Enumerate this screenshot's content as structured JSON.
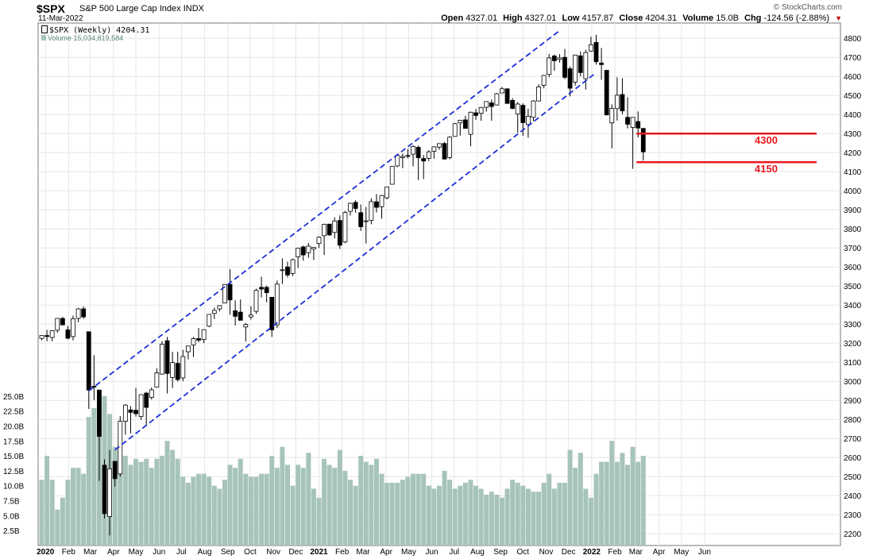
{
  "header": {
    "symbol": "$SPX",
    "name": "S&P 500 Large Cap Index",
    "exchange": "INDX",
    "date": "11-Mar-2022",
    "brand": "© StockCharts.com",
    "open_label": "Open",
    "open": "4327.01",
    "high_label": "High",
    "high": "4327.01",
    "low_label": "Low",
    "low": "4157.87",
    "close_label": "Close",
    "close": "4204.31",
    "volume_label": "Volume",
    "volume": "15.0B",
    "chg_label": "Chg",
    "chg": "-124.56 (-2.88%)"
  },
  "legend": {
    "price": "$SPX (Weekly) 4204.31",
    "volume": "Volume 15,034,819,584"
  },
  "colors": {
    "up_candle": "#ffffff",
    "down_candle": "#000000",
    "volume_bar": "#a7c4b8",
    "channel": "#1c2fd6",
    "level_line": "#e8191f",
    "grid": "#e6e6e6"
  },
  "chart_data": {
    "type": "candlestick",
    "frequency": "weekly",
    "ylim": [
      2180,
      4830
    ],
    "volume_ylim": [
      0,
      27500000000
    ],
    "x_tick_labels": [
      "2020",
      "Feb",
      "Mar",
      "Apr",
      "May",
      "Jun",
      "Jul",
      "Aug",
      "Sep",
      "Oct",
      "Nov",
      "Dec",
      "2021",
      "Feb",
      "Mar",
      "Apr",
      "May",
      "Jun",
      "Jul",
      "Aug",
      "Sep",
      "Oct",
      "Nov",
      "Dec",
      "2022",
      "Feb",
      "Mar",
      "Apr",
      "May",
      "Jun"
    ],
    "y_tick_labels": [
      4800,
      4700,
      4600,
      4500,
      4400,
      4300,
      4200,
      4100,
      4000,
      3900,
      3800,
      3700,
      3600,
      3500,
      3400,
      3300,
      3200,
      3100,
      3000,
      2900,
      2800,
      2700,
      2600,
      2500,
      2400,
      2300,
      2200
    ],
    "volume_tick_labels": [
      "25.0B",
      "22.5B",
      "20.0B",
      "17.5B",
      "15.0B",
      "12.5B",
      "10.0B",
      "7.5B",
      "5.0B",
      "2.5B"
    ],
    "annotations": [
      {
        "text": "4300",
        "value": 4300
      },
      {
        "text": "4150",
        "value": 4150
      }
    ],
    "channel_upper_from": [
      "2020-02-28",
      2950
    ],
    "channel_upper_to": [
      "2021-11-19",
      4840
    ],
    "channel_lower_from": [
      "2020-04-03",
      2640
    ],
    "channel_lower_to": [
      "2022-01-07",
      4620
    ],
    "candles": [
      {
        "date": "2019-12-27",
        "o": 3225,
        "h": 3240,
        "l": 3215,
        "c": 3240,
        "v": 11000000000.0
      },
      {
        "date": "2020-01-03",
        "o": 3240,
        "h": 3270,
        "l": 3210,
        "c": 3235,
        "v": 15000000000.0
      },
      {
        "date": "2020-01-10",
        "o": 3230,
        "h": 3268,
        "l": 3210,
        "c": 3265,
        "v": 11000000000.0
      },
      {
        "date": "2020-01-17",
        "o": 3268,
        "h": 3330,
        "l": 3255,
        "c": 3330,
        "v": 6000000000.0
      },
      {
        "date": "2020-01-24",
        "o": 3330,
        "h": 3338,
        "l": 3295,
        "c": 3296,
        "v": 8000000000.0
      },
      {
        "date": "2020-01-31",
        "o": 3270,
        "h": 3290,
        "l": 3220,
        "c": 3226,
        "v": 11000000000.0
      },
      {
        "date": "2020-02-07",
        "o": 3235,
        "h": 3345,
        "l": 3215,
        "c": 3328,
        "v": 13000000000.0
      },
      {
        "date": "2020-02-14",
        "o": 3330,
        "h": 3385,
        "l": 3310,
        "c": 3380,
        "v": 13000000000.0
      },
      {
        "date": "2020-02-21",
        "o": 3380,
        "h": 3393,
        "l": 3328,
        "c": 3338,
        "v": 12000000000.0
      },
      {
        "date": "2020-02-28",
        "o": 3260,
        "h": 3260,
        "l": 2855,
        "c": 2954,
        "v": 21500000000.0
      },
      {
        "date": "2020-03-06",
        "o": 2974,
        "h": 3137,
        "l": 2902,
        "c": 2972,
        "v": 23000000000.0
      },
      {
        "date": "2020-03-13",
        "o": 2954,
        "h": 2954,
        "l": 2478,
        "c": 2711,
        "v": 24500000000.0
      },
      {
        "date": "2020-03-20",
        "o": 2560,
        "h": 2590,
        "l": 2280,
        "c": 2305,
        "v": 25000000000.0
      },
      {
        "date": "2020-03-27",
        "o": 2290,
        "h": 2640,
        "l": 2191,
        "c": 2541,
        "v": 22000000000.0
      },
      {
        "date": "2020-04-03",
        "o": 2580,
        "h": 2580,
        "l": 2447,
        "c": 2489,
        "v": 16500000000.0
      },
      {
        "date": "2020-04-10",
        "o": 2514,
        "h": 2818,
        "l": 2500,
        "c": 2790,
        "v": 15000000000.0
      },
      {
        "date": "2020-04-17",
        "o": 2790,
        "h": 2880,
        "l": 2720,
        "c": 2875,
        "v": 15000000000.0
      },
      {
        "date": "2020-04-24",
        "o": 2850,
        "h": 2870,
        "l": 2727,
        "c": 2837,
        "v": 13500000000.0
      },
      {
        "date": "2020-05-01",
        "o": 2848,
        "h": 2965,
        "l": 2815,
        "c": 2830,
        "v": 14500000000.0
      },
      {
        "date": "2020-05-08",
        "o": 2815,
        "h": 2930,
        "l": 2797,
        "c": 2930,
        "v": 14000000000.0
      },
      {
        "date": "2020-05-15",
        "o": 2938,
        "h": 2945,
        "l": 2766,
        "c": 2863,
        "v": 14500000000.0
      },
      {
        "date": "2020-05-22",
        "o": 2915,
        "h": 2968,
        "l": 2904,
        "c": 2955,
        "v": 13000000000.0
      },
      {
        "date": "2020-05-29",
        "o": 2970,
        "h": 3068,
        "l": 2969,
        "c": 3044,
        "v": 14500000000.0
      },
      {
        "date": "2020-06-05",
        "o": 3038,
        "h": 3211,
        "l": 3035,
        "c": 3194,
        "v": 15000000000.0
      },
      {
        "date": "2020-06-12",
        "o": 3213,
        "h": 3233,
        "l": 2936,
        "c": 3041,
        "v": 17500000000.0
      },
      {
        "date": "2020-06-19",
        "o": 3020,
        "h": 3155,
        "l": 2965,
        "c": 3098,
        "v": 16000000000.0
      },
      {
        "date": "2020-06-26",
        "o": 3094,
        "h": 3155,
        "l": 2999,
        "c": 3009,
        "v": 14500000000.0
      },
      {
        "date": "2020-07-03",
        "o": 3018,
        "h": 3165,
        "l": 3000,
        "c": 3130,
        "v": 11500000000.0
      },
      {
        "date": "2020-07-10",
        "o": 3155,
        "h": 3186,
        "l": 3115,
        "c": 3185,
        "v": 10500000000.0
      },
      {
        "date": "2020-07-17",
        "o": 3191,
        "h": 3233,
        "l": 3127,
        "c": 3224,
        "v": 11500000000.0
      },
      {
        "date": "2020-07-24",
        "o": 3224,
        "h": 3280,
        "l": 3205,
        "c": 3216,
        "v": 12000000000.0
      },
      {
        "date": "2020-07-31",
        "o": 3219,
        "h": 3272,
        "l": 3200,
        "c": 3271,
        "v": 12000000000.0
      },
      {
        "date": "2020-08-07",
        "o": 3289,
        "h": 3352,
        "l": 3284,
        "c": 3351,
        "v": 11500000000.0
      },
      {
        "date": "2020-08-14",
        "o": 3356,
        "h": 3387,
        "l": 3327,
        "c": 3372,
        "v": 10000000000.0
      },
      {
        "date": "2020-08-21",
        "o": 3380,
        "h": 3399,
        "l": 3367,
        "c": 3397,
        "v": 9500000000.0
      },
      {
        "date": "2020-08-28",
        "o": 3411,
        "h": 3509,
        "l": 3409,
        "c": 3508,
        "v": 11000000000.0
      },
      {
        "date": "2020-09-04",
        "o": 3509,
        "h": 3588,
        "l": 3349,
        "c": 3427,
        "v": 13500000000.0
      },
      {
        "date": "2020-09-11",
        "o": 3370,
        "h": 3425,
        "l": 3293,
        "c": 3341,
        "v": 13000000000.0
      },
      {
        "date": "2020-09-18",
        "o": 3363,
        "h": 3429,
        "l": 3328,
        "c": 3320,
        "v": 14500000000.0
      },
      {
        "date": "2020-09-25",
        "o": 3285,
        "h": 3306,
        "l": 3209,
        "c": 3298,
        "v": 12000000000.0
      },
      {
        "date": "2020-10-02",
        "o": 3338,
        "h": 3394,
        "l": 3324,
        "c": 3348,
        "v": 11500000000.0
      },
      {
        "date": "2020-10-09",
        "o": 3367,
        "h": 3486,
        "l": 3354,
        "c": 3477,
        "v": 11500000000.0
      },
      {
        "date": "2020-10-16",
        "o": 3493,
        "h": 3549,
        "l": 3440,
        "c": 3484,
        "v": 12000000000.0
      },
      {
        "date": "2020-10-23",
        "o": 3493,
        "h": 3502,
        "l": 3415,
        "c": 3465,
        "v": 12000000000.0
      },
      {
        "date": "2020-10-30",
        "o": 3441,
        "h": 3441,
        "l": 3233,
        "c": 3270,
        "v": 15000000000.0
      },
      {
        "date": "2020-11-06",
        "o": 3296,
        "h": 3529,
        "l": 3279,
        "c": 3510,
        "v": 13000000000.0
      },
      {
        "date": "2020-11-13",
        "o": 3584,
        "h": 3645,
        "l": 3511,
        "c": 3585,
        "v": 16500000000.0
      },
      {
        "date": "2020-11-20",
        "o": 3600,
        "h": 3628,
        "l": 3545,
        "c": 3558,
        "v": 13500000000.0
      },
      {
        "date": "2020-11-27",
        "o": 3566,
        "h": 3644,
        "l": 3552,
        "c": 3638,
        "v": 10000000000.0
      },
      {
        "date": "2020-12-04",
        "o": 3653,
        "h": 3700,
        "l": 3594,
        "c": 3699,
        "v": 13500000000.0
      },
      {
        "date": "2020-12-11",
        "o": 3705,
        "h": 3712,
        "l": 3633,
        "c": 3663,
        "v": 13000000000.0
      },
      {
        "date": "2020-12-18",
        "o": 3675,
        "h": 3726,
        "l": 3648,
        "c": 3709,
        "v": 15500000000.0
      },
      {
        "date": "2020-12-25",
        "o": 3694,
        "h": 3705,
        "l": 3636,
        "c": 3703,
        "v": 9500000000.0
      },
      {
        "date": "2021-01-01",
        "o": 3723,
        "h": 3760,
        "l": 3700,
        "c": 3756,
        "v": 8000000000.0
      },
      {
        "date": "2021-01-08",
        "o": 3764,
        "h": 3827,
        "l": 3663,
        "c": 3824,
        "v": 14500000000.0
      },
      {
        "date": "2021-01-15",
        "o": 3825,
        "h": 3823,
        "l": 3764,
        "c": 3768,
        "v": 13500000000.0
      },
      {
        "date": "2021-01-22",
        "o": 3781,
        "h": 3861,
        "l": 3750,
        "c": 3841,
        "v": 13000000000.0
      },
      {
        "date": "2021-01-29",
        "o": 3844,
        "h": 3871,
        "l": 3694,
        "c": 3714,
        "v": 16000000000.0
      },
      {
        "date": "2021-02-05",
        "o": 3731,
        "h": 3894,
        "l": 3725,
        "c": 3886,
        "v": 12500000000.0
      },
      {
        "date": "2021-02-12",
        "o": 3892,
        "h": 3937,
        "l": 3870,
        "c": 3934,
        "v": 11000000000.0
      },
      {
        "date": "2021-02-19",
        "o": 3939,
        "h": 3950,
        "l": 3885,
        "c": 3907,
        "v": 10000000000.0
      },
      {
        "date": "2021-02-26",
        "o": 3885,
        "h": 3928,
        "l": 3789,
        "c": 3811,
        "v": 15000000000.0
      },
      {
        "date": "2021-03-05",
        "o": 3842,
        "h": 3915,
        "l": 3723,
        "c": 3842,
        "v": 14000000000.0
      },
      {
        "date": "2021-03-12",
        "o": 3844,
        "h": 3960,
        "l": 3824,
        "c": 3943,
        "v": 13500000000.0
      },
      {
        "date": "2021-03-19",
        "o": 3942,
        "h": 3983,
        "l": 3886,
        "c": 3913,
        "v": 14500000000.0
      },
      {
        "date": "2021-03-26",
        "o": 3916,
        "h": 3978,
        "l": 3853,
        "c": 3975,
        "v": 12000000000.0
      },
      {
        "date": "2021-04-02",
        "o": 3963,
        "h": 4020,
        "l": 3955,
        "c": 4020,
        "v": 10500000000.0
      },
      {
        "date": "2021-04-09",
        "o": 4034,
        "h": 4129,
        "l": 4034,
        "c": 4128,
        "v": 10500000000.0
      },
      {
        "date": "2021-04-16",
        "o": 4130,
        "h": 4191,
        "l": 4124,
        "c": 4185,
        "v": 10500000000.0
      },
      {
        "date": "2021-04-23",
        "o": 4174,
        "h": 4195,
        "l": 4118,
        "c": 4180,
        "v": 11000000000.0
      },
      {
        "date": "2021-04-30",
        "o": 4185,
        "h": 4219,
        "l": 4170,
        "c": 4181,
        "v": 11500000000.0
      },
      {
        "date": "2021-05-07",
        "o": 4192,
        "h": 4238,
        "l": 4128,
        "c": 4232,
        "v": 12000000000.0
      },
      {
        "date": "2021-05-14",
        "o": 4228,
        "h": 4237,
        "l": 4056,
        "c": 4173,
        "v": 12000000000.0
      },
      {
        "date": "2021-05-21",
        "o": 4169,
        "h": 4188,
        "l": 4061,
        "c": 4156,
        "v": 12000000000.0
      },
      {
        "date": "2021-05-28",
        "o": 4170,
        "h": 4213,
        "l": 4155,
        "c": 4204,
        "v": 10000000000.0
      },
      {
        "date": "2021-06-04",
        "o": 4207,
        "h": 4234,
        "l": 4168,
        "c": 4230,
        "v": 9500000000.0
      },
      {
        "date": "2021-06-11",
        "o": 4229,
        "h": 4249,
        "l": 4215,
        "c": 4247,
        "v": 10000000000.0
      },
      {
        "date": "2021-06-18",
        "o": 4248,
        "h": 4256,
        "l": 4164,
        "c": 4166,
        "v": 12500000000.0
      },
      {
        "date": "2021-06-25",
        "o": 4174,
        "h": 4286,
        "l": 4165,
        "c": 4281,
        "v": 11000000000.0
      },
      {
        "date": "2021-07-02",
        "o": 4285,
        "h": 4356,
        "l": 4283,
        "c": 4352,
        "v": 9500000000.0
      },
      {
        "date": "2021-07-09",
        "o": 4356,
        "h": 4372,
        "l": 4289,
        "c": 4370,
        "v": 10000000000.0
      },
      {
        "date": "2021-07-16",
        "o": 4372,
        "h": 4393,
        "l": 4327,
        "c": 4327,
        "v": 10500000000.0
      },
      {
        "date": "2021-07-23",
        "o": 4296,
        "h": 4415,
        "l": 4233,
        "c": 4412,
        "v": 11000000000.0
      },
      {
        "date": "2021-07-30",
        "o": 4409,
        "h": 4429,
        "l": 4372,
        "c": 4395,
        "v": 10000000000.0
      },
      {
        "date": "2021-08-06",
        "o": 4406,
        "h": 4440,
        "l": 4367,
        "c": 4437,
        "v": 9500000000.0
      },
      {
        "date": "2021-08-13",
        "o": 4438,
        "h": 4468,
        "l": 4415,
        "c": 4468,
        "v": 8500000000.0
      },
      {
        "date": "2021-08-20",
        "o": 4461,
        "h": 4479,
        "l": 4367,
        "c": 4442,
        "v": 9000000000.0
      },
      {
        "date": "2021-08-27",
        "o": 4450,
        "h": 4513,
        "l": 4448,
        "c": 4509,
        "v": 8500000000.0
      },
      {
        "date": "2021-09-03",
        "o": 4513,
        "h": 4545,
        "l": 4513,
        "c": 4535,
        "v": 8000000000.0
      },
      {
        "date": "2021-09-10",
        "o": 4535,
        "h": 4536,
        "l": 4457,
        "c": 4458,
        "v": 9500000000.0
      },
      {
        "date": "2021-09-17",
        "o": 4474,
        "h": 4486,
        "l": 4427,
        "c": 4432,
        "v": 11000000000.0
      },
      {
        "date": "2021-09-24",
        "o": 4402,
        "h": 4465,
        "l": 4305,
        "c": 4455,
        "v": 10500000000.0
      },
      {
        "date": "2021-10-01",
        "o": 4448,
        "h": 4458,
        "l": 4288,
        "c": 4357,
        "v": 10000000000.0
      },
      {
        "date": "2021-10-08",
        "o": 4348,
        "h": 4430,
        "l": 4278,
        "c": 4391,
        "v": 9500000000.0
      },
      {
        "date": "2021-10-15",
        "o": 4385,
        "h": 4475,
        "l": 4365,
        "c": 4471,
        "v": 9000000000.0
      },
      {
        "date": "2021-10-22",
        "o": 4471,
        "h": 4559,
        "l": 4470,
        "c": 4545,
        "v": 9000000000.0
      },
      {
        "date": "2021-10-29",
        "o": 4553,
        "h": 4608,
        "l": 4537,
        "c": 4605,
        "v": 10500000000.0
      },
      {
        "date": "2021-11-05",
        "o": 4610,
        "h": 4718,
        "l": 4595,
        "c": 4697,
        "v": 12000000000.0
      },
      {
        "date": "2021-11-12",
        "o": 4707,
        "h": 4714,
        "l": 4630,
        "c": 4682,
        "v": 9500000000.0
      },
      {
        "date": "2021-11-19",
        "o": 4689,
        "h": 4717,
        "l": 4672,
        "c": 4697,
        "v": 10500000000.0
      },
      {
        "date": "2021-11-26",
        "o": 4700,
        "h": 4744,
        "l": 4585,
        "c": 4595,
        "v": 10500000000.0
      },
      {
        "date": "2021-12-03",
        "o": 4640,
        "h": 4652,
        "l": 4495,
        "c": 4538,
        "v": 16000000000.0
      },
      {
        "date": "2021-12-10",
        "o": 4570,
        "h": 4713,
        "l": 4552,
        "c": 4712,
        "v": 13000000000.0
      },
      {
        "date": "2021-12-17",
        "o": 4708,
        "h": 4731,
        "l": 4600,
        "c": 4620,
        "v": 15500000000.0
      },
      {
        "date": "2021-12-24",
        "o": 4588,
        "h": 4740,
        "l": 4531,
        "c": 4725,
        "v": 9500000000.0
      },
      {
        "date": "2021-12-31",
        "o": 4733,
        "h": 4808,
        "l": 4729,
        "c": 4766,
        "v": 8000000000.0
      },
      {
        "date": "2022-01-07",
        "o": 4778,
        "h": 4818,
        "l": 4662,
        "c": 4677,
        "v": 12000000000.0
      },
      {
        "date": "2022-01-14",
        "o": 4670,
        "h": 4749,
        "l": 4582,
        "c": 4662,
        "v": 14000000000.0
      },
      {
        "date": "2022-01-21",
        "o": 4632,
        "h": 4632,
        "l": 4395,
        "c": 4398,
        "v": 14000000000.0
      },
      {
        "date": "2022-01-28",
        "o": 4356,
        "h": 4453,
        "l": 4222,
        "c": 4432,
        "v": 17500000000.0
      },
      {
        "date": "2022-02-04",
        "o": 4431,
        "h": 4595,
        "l": 4368,
        "c": 4501,
        "v": 14000000000.0
      },
      {
        "date": "2022-02-11",
        "o": 4505,
        "h": 4590,
        "l": 4401,
        "c": 4419,
        "v": 15500000000.0
      },
      {
        "date": "2022-02-18",
        "o": 4385,
        "h": 4490,
        "l": 4327,
        "c": 4349,
        "v": 13500000000.0
      },
      {
        "date": "2022-02-25",
        "o": 4332,
        "h": 4385,
        "l": 4115,
        "c": 4385,
        "v": 16500000000.0
      },
      {
        "date": "2022-03-04",
        "o": 4363,
        "h": 4416,
        "l": 4279,
        "c": 4329,
        "v": 14000000000.0
      },
      {
        "date": "2022-03-11",
        "o": 4327,
        "h": 4327,
        "l": 4158,
        "c": 4204,
        "v": 15000000000.0
      }
    ]
  }
}
